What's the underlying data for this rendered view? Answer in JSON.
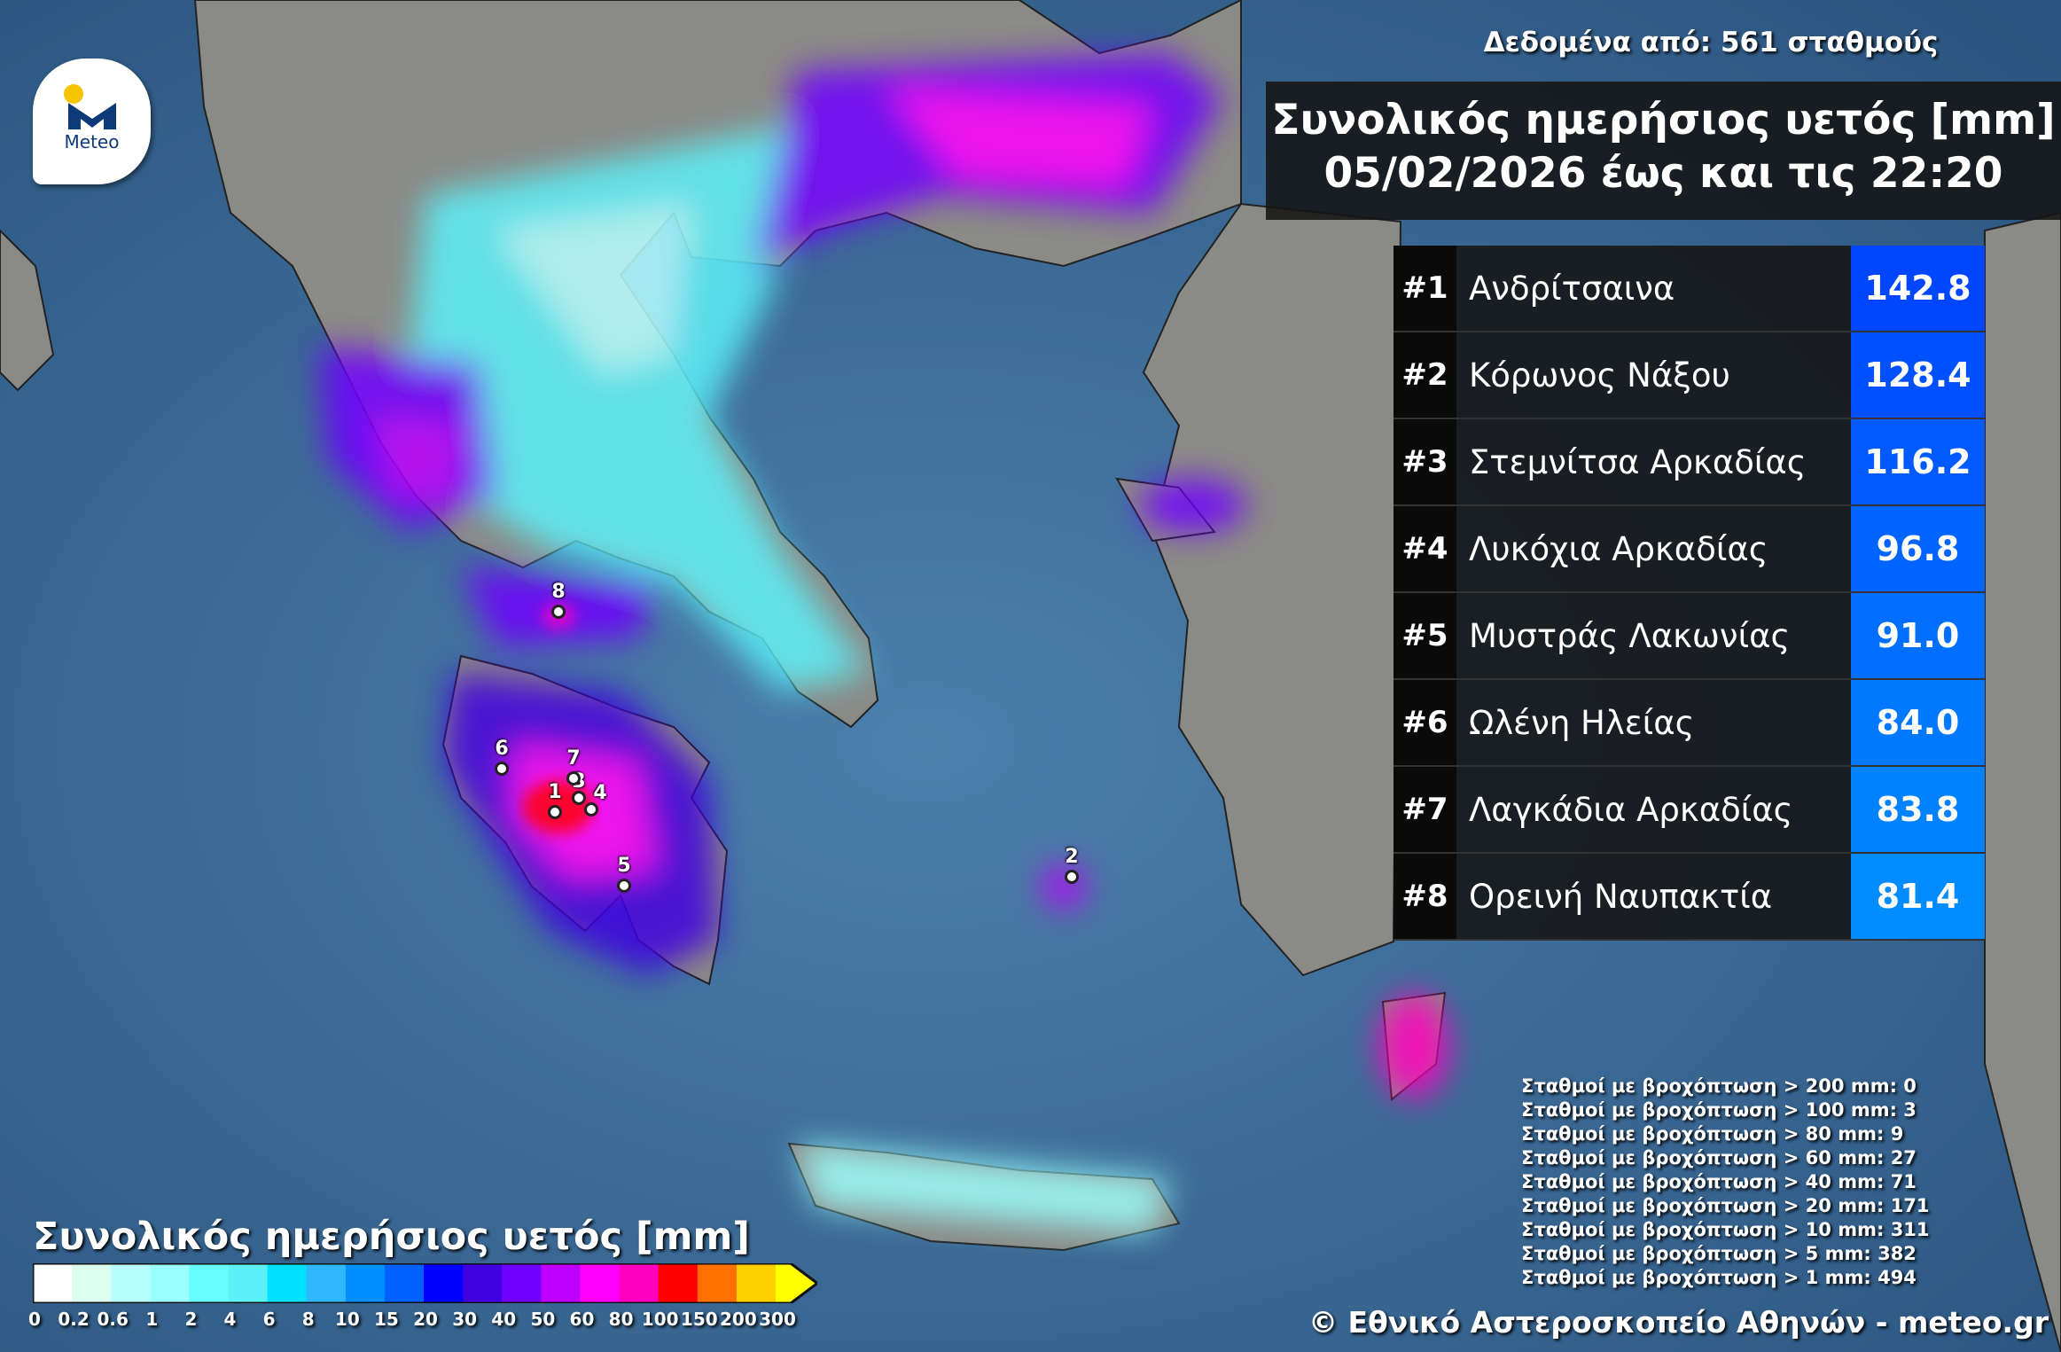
{
  "header": {
    "data_source": "Δεδομένα από: 561 σταθμούς",
    "title_line1": "Συνολικός ημερήσιος υετός [mm]",
    "title_line2": "05/02/2026 έως και τις 22:20"
  },
  "logo": {
    "text": "Meteo",
    "icon": "meteo-logo"
  },
  "ranking": [
    {
      "rank": "#1",
      "name": "Ανδρίτσαινα",
      "value": "142.8"
    },
    {
      "rank": "#2",
      "name": "Κόρωνος Νάξου",
      "value": "128.4"
    },
    {
      "rank": "#3",
      "name": "Στεμνίτσα Αρκαδίας",
      "value": "116.2"
    },
    {
      "rank": "#4",
      "name": "Λυκόχια Αρκαδίας",
      "value": "96.8"
    },
    {
      "rank": "#5",
      "name": "Μυστράς Λακωνίας",
      "value": "91.0"
    },
    {
      "rank": "#6",
      "name": "Ωλένη Ηλείας",
      "value": "84.0"
    },
    {
      "rank": "#7",
      "name": "Λαγκάδια Αρκαδίας",
      "value": "83.8"
    },
    {
      "rank": "#8",
      "name": "Ορεινή Ναυπακτία",
      "value": "81.4"
    }
  ],
  "stats": [
    "Σταθμοί με βροχόπτωση > 200 mm: 0",
    "Σταθμοί με βροχόπτωση > 100 mm: 3",
    "Σταθμοί με βροχόπτωση > 80 mm: 9",
    "Σταθμοί με βροχόπτωση > 60 mm: 27",
    "Σταθμοί με βροχόπτωση > 40 mm: 71",
    "Σταθμοί με βροχόπτωση > 20 mm: 171",
    "Σταθμοί με βροχόπτωση > 10 mm: 311",
    "Σταθμοί με βροχόπτωση > 5 mm: 382",
    "Σταθμοί με βροχόπτωση > 1 mm: 494"
  ],
  "legend": {
    "title": "Συνολικός ημερήσιος υετός [mm]",
    "ticks": [
      "0",
      "0.2",
      "0.6",
      "1",
      "2",
      "4",
      "6",
      "8",
      "10",
      "15",
      "20",
      "30",
      "40",
      "50",
      "60",
      "80",
      "100",
      "150",
      "200",
      "300"
    ],
    "colors": [
      "#ffffff",
      "#dcfff0",
      "#b8ffff",
      "#99ffff",
      "#66fbff",
      "#5cf0f8",
      "#00e0ff",
      "#30b8ff",
      "#0090ff",
      "#0060ff",
      "#0000ff",
      "#4000e0",
      "#7000ff",
      "#c000ff",
      "#ff00ff",
      "#ff00c0",
      "#ff0000",
      "#ff7000",
      "#ffd000"
    ],
    "overflow_color": "#ffff00"
  },
  "stations": [
    "1",
    "2",
    "3",
    "4",
    "5",
    "6",
    "7",
    "8"
  ],
  "footer": "© Εθνικό Αστεροσκοπείο Αθηνών - meteo.gr"
}
